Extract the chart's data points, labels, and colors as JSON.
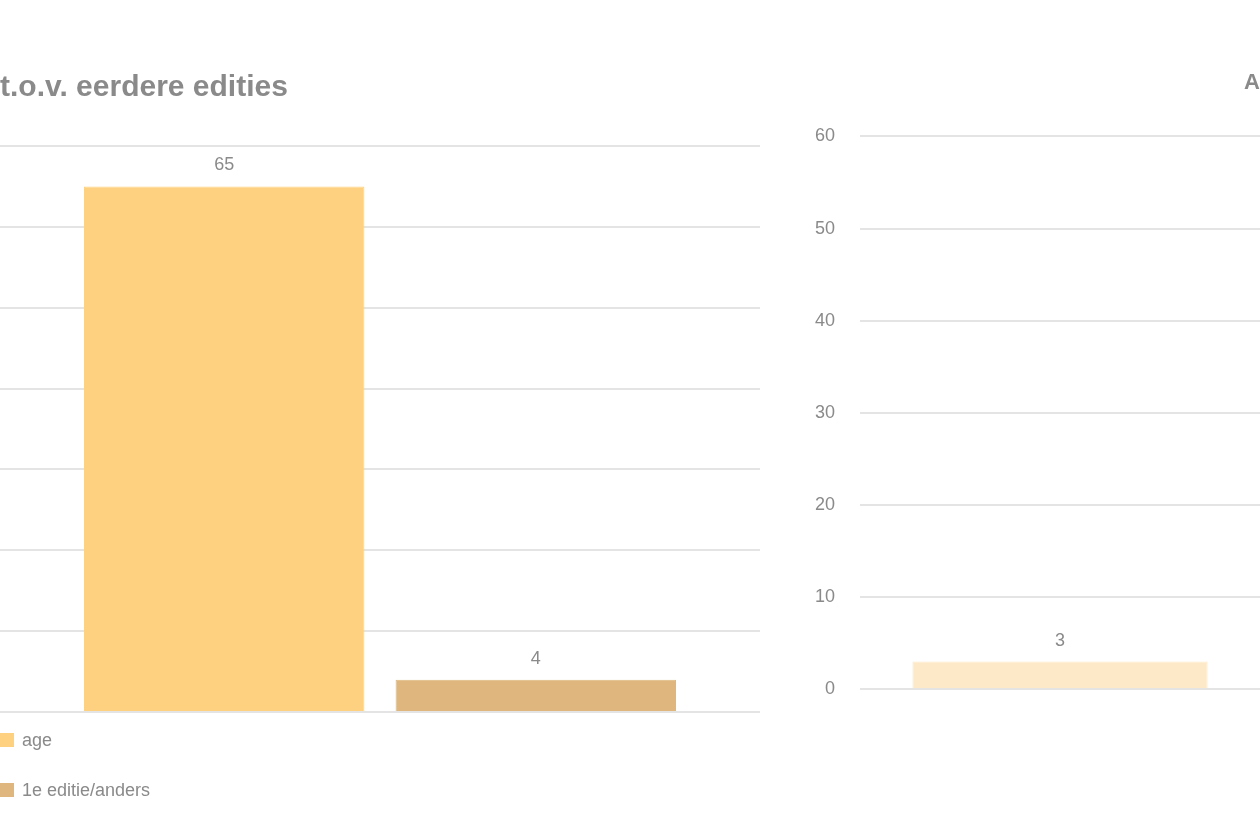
{
  "chart_data": [
    {
      "type": "bar",
      "title": "t.o.v. eerdere edities",
      "categories": [
        null
      ],
      "series": [
        {
          "name": "age",
          "color": "#fdd17f",
          "values": [
            65
          ]
        },
        {
          "name": "1e editie/anders",
          "color": "#dfb67d",
          "values": [
            4
          ]
        }
      ],
      "tick_labels": false,
      "grid": "y",
      "data_labels": true,
      "legend": "bottom left"
    },
    {
      "type": "bar",
      "title": "A",
      "categories": [
        null
      ],
      "series": [
        {
          "color": "#fde9c8",
          "values": [
            3
          ]
        }
      ],
      "ylim": [
        0,
        60
      ],
      "yticks": [
        0,
        10,
        20,
        30,
        40,
        50,
        60
      ],
      "grid": "y",
      "data_labels": true
    }
  ]
}
